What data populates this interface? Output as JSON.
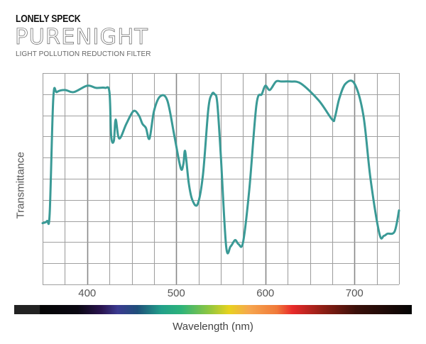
{
  "header": {
    "brand": "LONELY SPECK",
    "product": "PURENIGHT",
    "subtitle": "LIGHT POLLUTION REDUCTION FILTER"
  },
  "colors": {
    "curve": "#3a9a96",
    "grid": "#a0a0a0"
  },
  "chart_data": {
    "type": "line",
    "title": "PURENIGHT Light Pollution Reduction Filter",
    "xlabel": "Wavelength (nm)",
    "ylabel": "Transmittance",
    "xlim": [
      350,
      750
    ],
    "ylim": [
      0,
      1
    ],
    "grid": true,
    "x_ticks": [
      400,
      500,
      600,
      700
    ],
    "x_grid_step": 25,
    "y_grid_divisions": 10,
    "series": [
      {
        "name": "Transmittance",
        "x": [
          350,
          355,
          358,
          362,
          366,
          375,
          385,
          400,
          410,
          420,
          425,
          427,
          430,
          432,
          436,
          444,
          452,
          458,
          462,
          466,
          470,
          475,
          482,
          490,
          498,
          505,
          508,
          510,
          514,
          518,
          524,
          530,
          536,
          540,
          543,
          546,
          550,
          556,
          561,
          566,
          570,
          575,
          582,
          590,
          596,
          600,
          605,
          612,
          618,
          628,
          640,
          660,
          675,
          678,
          683,
          690,
          700,
          710,
          718,
          728,
          733,
          737,
          745,
          750
        ],
        "y": [
          0.29,
          0.3,
          0.34,
          0.88,
          0.91,
          0.92,
          0.91,
          0.94,
          0.93,
          0.93,
          0.91,
          0.7,
          0.68,
          0.78,
          0.69,
          0.76,
          0.82,
          0.8,
          0.76,
          0.74,
          0.69,
          0.82,
          0.89,
          0.87,
          0.7,
          0.55,
          0.57,
          0.63,
          0.48,
          0.4,
          0.38,
          0.52,
          0.83,
          0.9,
          0.9,
          0.86,
          0.61,
          0.18,
          0.18,
          0.21,
          0.19,
          0.2,
          0.45,
          0.85,
          0.9,
          0.94,
          0.92,
          0.96,
          0.96,
          0.96,
          0.95,
          0.87,
          0.78,
          0.79,
          0.88,
          0.95,
          0.95,
          0.8,
          0.5,
          0.24,
          0.23,
          0.24,
          0.25,
          0.35
        ]
      }
    ]
  }
}
